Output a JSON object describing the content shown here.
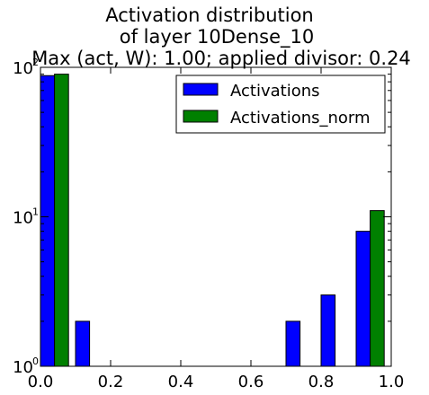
{
  "chart_data": {
    "type": "bar",
    "title": [
      "Activation distribution",
      "of layer 10Dense_10",
      "Max (act, W): 1.00; applied divisor: 0.24"
    ],
    "xlabel": "",
    "ylabel": "",
    "xlim": [
      0.0,
      1.0
    ],
    "yscale": "log",
    "ylim": [
      1,
      100
    ],
    "x_ticks": [
      "0.0",
      "0.2",
      "0.4",
      "0.6",
      "0.8",
      "1.0"
    ],
    "y_ticks": [
      {
        "value": 1,
        "base": "10",
        "exp": "0"
      },
      {
        "value": 10,
        "base": "10",
        "exp": "1"
      },
      {
        "value": 100,
        "base": "10",
        "exp": "2"
      }
    ],
    "legend_position": "top-right",
    "grid": false,
    "series": [
      {
        "name": "Activations",
        "color": "#0000ff",
        "bins": [
          {
            "x0": 0.0,
            "x1": 0.04,
            "value": 88
          },
          {
            "x0": 0.1,
            "x1": 0.14,
            "value": 2
          },
          {
            "x0": 0.7,
            "x1": 0.74,
            "value": 2
          },
          {
            "x0": 0.8,
            "x1": 0.84,
            "value": 3
          },
          {
            "x0": 0.9,
            "x1": 0.94,
            "value": 8
          }
        ]
      },
      {
        "name": "Activations_norm",
        "color": "#008000",
        "bins": [
          {
            "x0": 0.04,
            "x1": 0.08,
            "value": 90
          },
          {
            "x0": 0.94,
            "x1": 0.98,
            "value": 11
          }
        ]
      }
    ]
  }
}
